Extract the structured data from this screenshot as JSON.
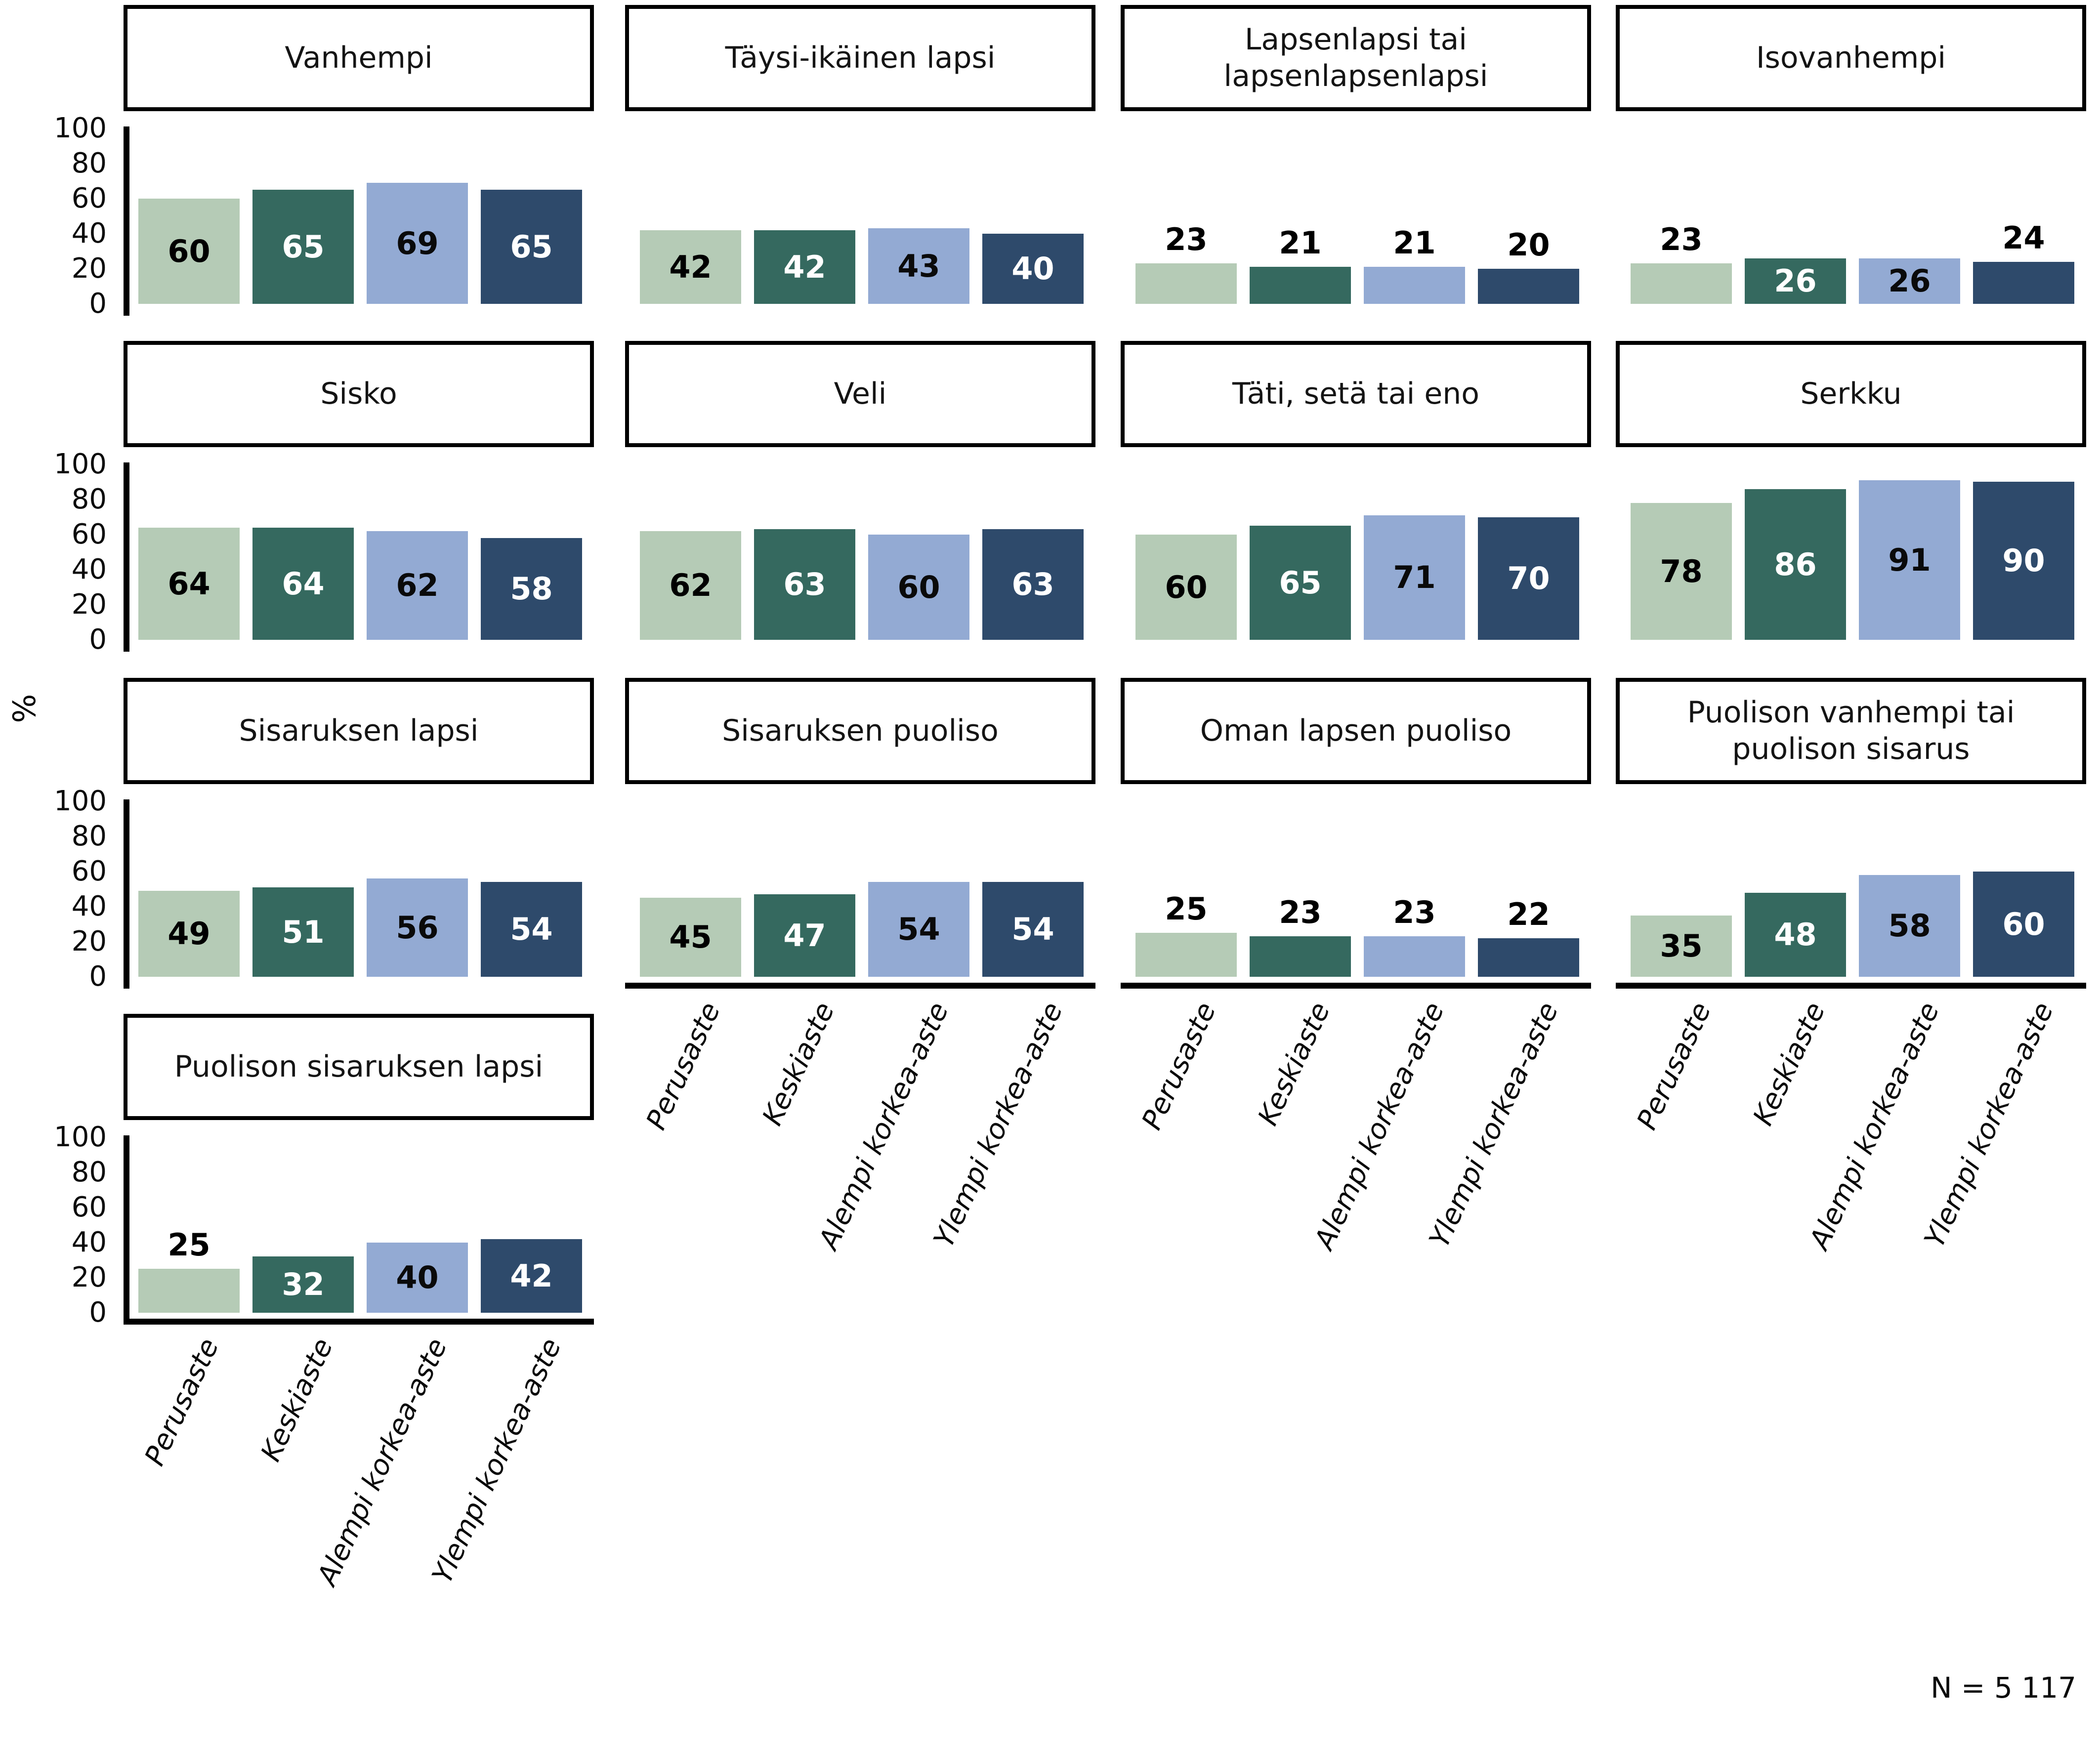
{
  "chart_data": {
    "type": "bar",
    "layout": "facet-grid-4-columns",
    "ylabel": "%",
    "ylim": [
      0,
      100
    ],
    "yticks": [
      0,
      20,
      40,
      60,
      80,
      100
    ],
    "grid": "off",
    "note": "N = 5 117",
    "categories": [
      "Perusaste",
      "Keskiaste",
      "Alempi korkea-aste",
      "Ylempi korkea-aste"
    ],
    "palette": [
      "#b5cbb6",
      "#35695f",
      "#93aad3",
      "#2e4a6b"
    ],
    "label_text_colors": [
      "#000000",
      "#ffffff",
      "#0a0a0a",
      "#ffffff"
    ],
    "inside_label_min": 26,
    "facets": [
      {
        "title": "Vanhempi",
        "values": [
          60,
          65,
          69,
          65
        ]
      },
      {
        "title": "Täysi-ikäinen lapsi",
        "values": [
          42,
          42,
          43,
          40
        ]
      },
      {
        "title": "Lapsenlapsi tai lapsenlapsenlapsi",
        "values": [
          23,
          21,
          21,
          20
        ]
      },
      {
        "title": "Isovanhempi",
        "values": [
          23,
          26,
          26,
          24
        ]
      },
      {
        "title": "Sisko",
        "values": [
          64,
          64,
          62,
          58
        ]
      },
      {
        "title": "Veli",
        "values": [
          62,
          63,
          60,
          63
        ]
      },
      {
        "title": "Täti, setä tai eno",
        "values": [
          60,
          65,
          71,
          70
        ]
      },
      {
        "title": "Serkku",
        "values": [
          78,
          86,
          91,
          90
        ]
      },
      {
        "title": "Sisaruksen lapsi",
        "values": [
          49,
          51,
          56,
          54
        ]
      },
      {
        "title": "Sisaruksen puoliso",
        "values": [
          45,
          47,
          54,
          54
        ]
      },
      {
        "title": "Oman lapsen puoliso",
        "values": [
          25,
          23,
          23,
          22
        ]
      },
      {
        "title": "Puolison vanhempi tai puolison sisarus",
        "values": [
          35,
          48,
          58,
          60
        ]
      },
      {
        "title": "Puolison sisaruksen lapsi",
        "values": [
          25,
          32,
          40,
          42
        ]
      }
    ]
  }
}
